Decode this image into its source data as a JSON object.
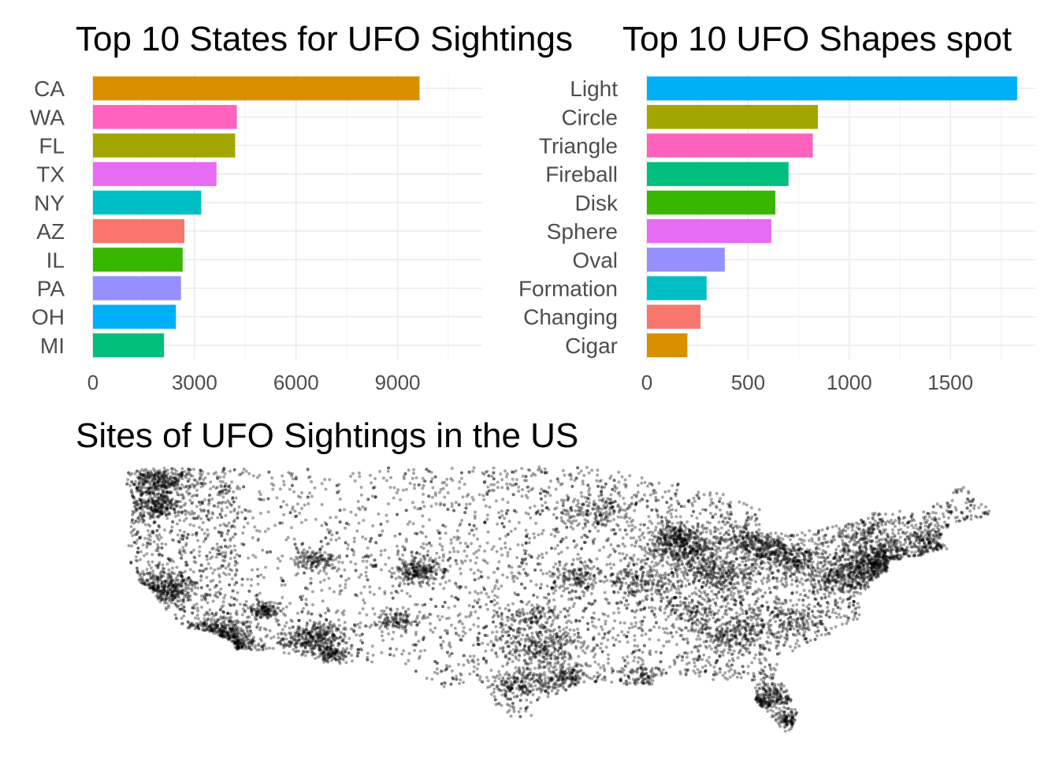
{
  "chart_data": [
    {
      "type": "bar",
      "orientation": "horizontal",
      "title": "Top 10 States for UFO Sightings",
      "xlabel": "",
      "ylabel": "",
      "categories": [
        "CA",
        "WA",
        "FL",
        "TX",
        "NY",
        "AZ",
        "IL",
        "PA",
        "OH",
        "MI"
      ],
      "values": [
        9650,
        4250,
        4200,
        3650,
        3200,
        2700,
        2650,
        2600,
        2450,
        2100
      ],
      "colors": [
        "#d89000",
        "#ff62bc",
        "#a3a500",
        "#e76bf3",
        "#00bfc4",
        "#f8766d",
        "#39b600",
        "#9590ff",
        "#00b0f6",
        "#00bf7d"
      ],
      "xlim": [
        0,
        11500
      ],
      "xticks": [
        0,
        3000,
        6000,
        9000
      ],
      "xtick_labels": [
        "0",
        "3000",
        "6000",
        "9000"
      ],
      "grid": true
    },
    {
      "type": "bar",
      "orientation": "horizontal",
      "title": "Top 10 UFO Shapes spot",
      "xlabel": "",
      "ylabel": "",
      "categories": [
        "Light",
        "Circle",
        "Triangle",
        "Fireball",
        "Disk",
        "Sphere",
        "Oval",
        "Formation",
        "Changing",
        "Cigar"
      ],
      "values": [
        1830,
        845,
        820,
        700,
        635,
        615,
        385,
        295,
        265,
        200
      ],
      "colors": [
        "#00b0f6",
        "#a3a500",
        "#ff62bc",
        "#00bf7d",
        "#39b600",
        "#e76bf3",
        "#9590ff",
        "#00bfc4",
        "#f8766d",
        "#d89000"
      ],
      "xlim": [
        0,
        1920
      ],
      "xticks": [
        0,
        500,
        1000,
        1500
      ],
      "xtick_labels": [
        "0",
        "500",
        "1000",
        "1500"
      ],
      "grid": true
    },
    {
      "type": "scatter",
      "title": "Sites of UFO Sightings in the US",
      "xlabel": "",
      "ylabel": "",
      "point_color": "#000000",
      "point_opacity": 0.35,
      "grid": false,
      "x_range": [
        -125,
        -67
      ],
      "y_range": [
        25,
        49
      ],
      "clusters": [
        {
          "lon": -122.3,
          "lat": 47.6,
          "n": 320,
          "spread": 0.9
        },
        {
          "lon": -122.6,
          "lat": 45.5,
          "n": 220,
          "spread": 0.8
        },
        {
          "lon": -122.2,
          "lat": 37.7,
          "n": 260,
          "spread": 0.8
        },
        {
          "lon": -121.5,
          "lat": 38.5,
          "n": 120,
          "spread": 0.8
        },
        {
          "lon": -118.2,
          "lat": 34.0,
          "n": 420,
          "spread": 0.9
        },
        {
          "lon": -117.1,
          "lat": 32.8,
          "n": 200,
          "spread": 0.6
        },
        {
          "lon": -112.0,
          "lat": 33.5,
          "n": 360,
          "spread": 0.9
        },
        {
          "lon": -110.9,
          "lat": 32.2,
          "n": 120,
          "spread": 0.5
        },
        {
          "lon": -115.2,
          "lat": 36.1,
          "n": 140,
          "spread": 0.5
        },
        {
          "lon": -111.9,
          "lat": 40.7,
          "n": 140,
          "spread": 0.6
        },
        {
          "lon": -104.9,
          "lat": 39.7,
          "n": 220,
          "spread": 0.7
        },
        {
          "lon": -106.6,
          "lat": 35.1,
          "n": 110,
          "spread": 0.6
        },
        {
          "lon": -96.8,
          "lat": 32.8,
          "n": 260,
          "spread": 1.1
        },
        {
          "lon": -95.4,
          "lat": 29.8,
          "n": 220,
          "spread": 0.9
        },
        {
          "lon": -98.5,
          "lat": 29.4,
          "n": 120,
          "spread": 0.7
        },
        {
          "lon": -87.6,
          "lat": 41.9,
          "n": 360,
          "spread": 0.9
        },
        {
          "lon": -83.0,
          "lat": 42.3,
          "n": 220,
          "spread": 1.0
        },
        {
          "lon": -81.6,
          "lat": 41.4,
          "n": 200,
          "spread": 1.0
        },
        {
          "lon": -80.0,
          "lat": 40.4,
          "n": 160,
          "spread": 0.8
        },
        {
          "lon": -84.4,
          "lat": 33.8,
          "n": 200,
          "spread": 1.0
        },
        {
          "lon": -81.5,
          "lat": 28.5,
          "n": 220,
          "spread": 1.0
        },
        {
          "lon": -80.2,
          "lat": 26.2,
          "n": 160,
          "spread": 0.5
        },
        {
          "lon": -74.0,
          "lat": 40.7,
          "n": 420,
          "spread": 1.1
        },
        {
          "lon": -71.1,
          "lat": 42.3,
          "n": 240,
          "spread": 0.9
        },
        {
          "lon": -75.2,
          "lat": 39.9,
          "n": 240,
          "spread": 0.9
        },
        {
          "lon": -77.0,
          "lat": 38.9,
          "n": 220,
          "spread": 0.9
        },
        {
          "lon": -90.2,
          "lat": 38.6,
          "n": 160,
          "spread": 0.9
        },
        {
          "lon": -93.3,
          "lat": 45.0,
          "n": 150,
          "spread": 0.9
        },
        {
          "lon": -86.8,
          "lat": 36.1,
          "n": 140,
          "spread": 1.1
        },
        {
          "lon": -80.8,
          "lat": 35.2,
          "n": 160,
          "spread": 1.1
        },
        {
          "lon": -94.6,
          "lat": 39.1,
          "n": 130,
          "spread": 0.8
        },
        {
          "lon": -97.5,
          "lat": 35.5,
          "n": 100,
          "spread": 0.8
        },
        {
          "lon": -84.5,
          "lat": 39.1,
          "n": 160,
          "spread": 0.9
        },
        {
          "lon": -86.2,
          "lat": 39.8,
          "n": 130,
          "spread": 0.8
        },
        {
          "lon": -88.0,
          "lat": 43.0,
          "n": 110,
          "spread": 0.6
        },
        {
          "lon": -76.0,
          "lat": 43.0,
          "n": 140,
          "spread": 1.2
        },
        {
          "lon": -90.1,
          "lat": 30.0,
          "n": 90,
          "spread": 0.6
        },
        {
          "lon": -82.5,
          "lat": 27.9,
          "n": 140,
          "spread": 0.5
        }
      ],
      "background_points": 5000
    }
  ]
}
